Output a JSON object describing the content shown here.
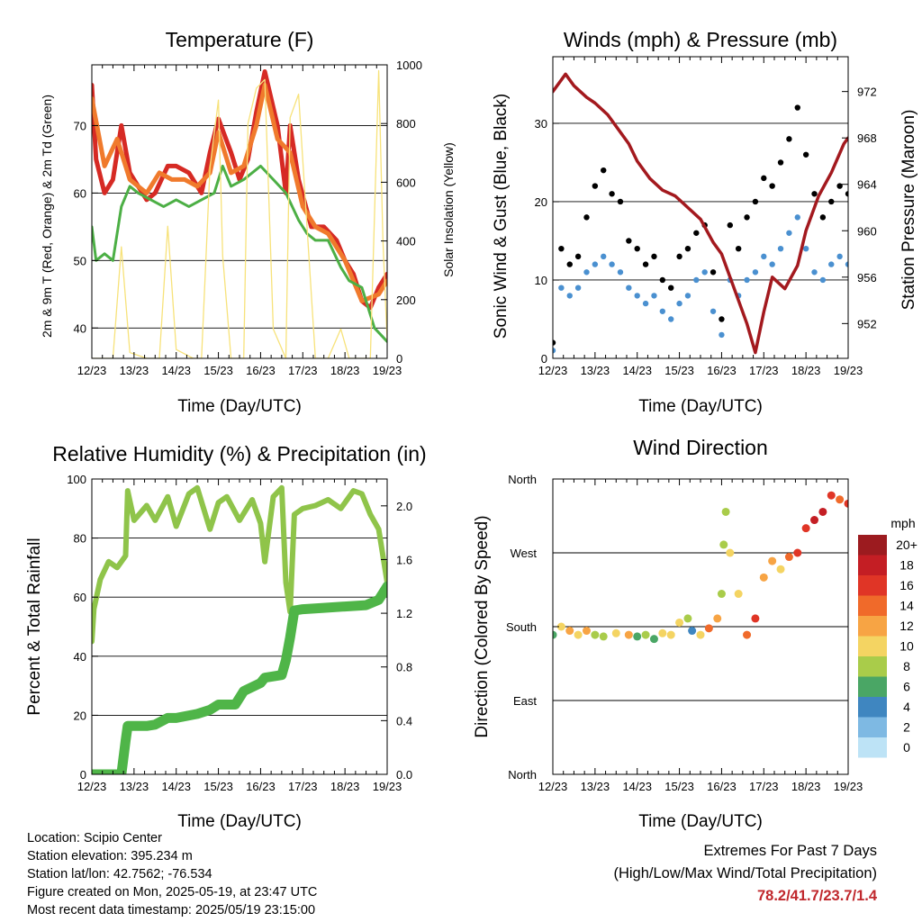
{
  "xticks": [
    "12/23",
    "13/23",
    "14/23",
    "15/23",
    "16/23",
    "17/23",
    "18/23",
    "19/23"
  ],
  "info": {
    "location": "Location: Scipio Center",
    "elevation": "Station elevation: 395.234 m",
    "latlon": "Station lat/lon: 42.7562; -76.534",
    "created": "Figure created on Mon, 2025-05-19, at 23:47 UTC",
    "recent": "Most recent data timestamp: 2025/05/19 23:15:00"
  },
  "extremes": {
    "title": "Extremes For Past 7 Days",
    "subtitle": "(High/Low/Max Wind/Total Precipitation)",
    "values": "78.2/41.7/23.7/1.4"
  },
  "legend": {
    "title": "mph",
    "labels": [
      "20+",
      "18",
      "16",
      "14",
      "12",
      "10",
      "8",
      "6",
      "4",
      "2",
      "0"
    ],
    "colors": [
      "#9c1b1f",
      "#c41e24",
      "#e03526",
      "#f06a2a",
      "#f7a444",
      "#f4d462",
      "#a9cc4a",
      "#4aa665",
      "#3f86c0",
      "#7eb9e3",
      "#bde3f6"
    ]
  },
  "chart_data": [
    {
      "type": "line",
      "title": "Temperature (F)",
      "xlabel": "Time (Day/UTC)",
      "ylabel": "2m & 9m T (Red, Orange) & 2m Td (Green)",
      "y2label": "Solar Insolation (Yellow)",
      "xlim": [
        12,
        19
      ],
      "ylim": [
        35.5,
        79
      ],
      "y2lim": [
        0,
        1000
      ],
      "yticks": [
        40,
        50,
        60,
        70
      ],
      "y2ticks": [
        0,
        200,
        400,
        600,
        800,
        1000
      ],
      "grid": true,
      "series": [
        {
          "color": "#d62a24",
          "x": [
            12.0,
            12.1,
            12.3,
            12.5,
            12.7,
            12.9,
            13.1,
            13.3,
            13.5,
            13.8,
            14.0,
            14.3,
            14.6,
            14.8,
            15.0,
            15.3,
            15.5,
            15.7,
            15.9,
            16.1,
            16.4,
            16.6,
            16.7,
            16.9,
            17.2,
            17.5,
            17.8,
            18.0,
            18.2,
            18.4,
            18.6,
            18.8,
            19.0
          ],
          "y": [
            76,
            65,
            60,
            62,
            70,
            63,
            61,
            59,
            60,
            64,
            64,
            63,
            60,
            66,
            71,
            66,
            62,
            65,
            72,
            78,
            70,
            60,
            70,
            62,
            55,
            55,
            53,
            50,
            48,
            44,
            43,
            46,
            48
          ]
        },
        {
          "color": "#f07a2c",
          "x": [
            12.0,
            12.3,
            12.6,
            12.9,
            13.1,
            13.3,
            13.6,
            13.9,
            14.2,
            14.5,
            14.8,
            15.0,
            15.3,
            15.6,
            15.9,
            16.1,
            16.4,
            16.7,
            17.0,
            17.3,
            17.6,
            18.0,
            18.4,
            18.8,
            19.0
          ],
          "y": [
            74,
            64,
            68,
            62,
            61,
            60,
            63,
            62,
            62,
            61,
            63,
            69,
            63,
            64,
            70,
            76,
            68,
            66,
            58,
            55,
            54,
            50,
            44,
            45,
            47
          ]
        },
        {
          "color": "#4caf45",
          "x": [
            12.0,
            12.1,
            12.3,
            12.5,
            12.7,
            12.9,
            13.1,
            13.4,
            13.7,
            14.0,
            14.3,
            14.6,
            14.9,
            15.1,
            15.3,
            15.6,
            15.8,
            16.0,
            16.3,
            16.6,
            16.9,
            17.1,
            17.3,
            17.6,
            17.9,
            18.1,
            18.4,
            18.7,
            19.0
          ],
          "y": [
            55,
            50,
            51,
            50,
            58,
            61,
            60,
            59,
            58,
            59,
            58,
            59,
            60,
            64,
            61,
            62,
            63,
            64,
            62,
            60,
            56,
            54,
            53,
            53,
            49,
            47,
            46,
            40,
            38
          ]
        },
        {
          "color": "#f7e27a",
          "axis": "y2",
          "x": [
            12.0,
            12.5,
            12.7,
            12.9,
            13.3,
            13.6,
            13.8,
            14.0,
            14.4,
            14.6,
            14.8,
            15.0,
            15.1,
            15.3,
            15.6,
            15.7,
            15.9,
            16.1,
            16.3,
            16.6,
            16.7,
            16.9,
            17.3,
            17.6,
            17.9,
            18.1,
            18.6,
            18.8,
            18.9,
            19.0
          ],
          "y": [
            0,
            0,
            380,
            20,
            0,
            0,
            450,
            30,
            0,
            0,
            650,
            880,
            350,
            0,
            0,
            800,
            920,
            950,
            100,
            0,
            820,
            900,
            0,
            0,
            100,
            0,
            0,
            980,
            400,
            60
          ]
        }
      ]
    },
    {
      "type": "scatter",
      "title": "Winds (mph) & Pressure (mb)",
      "xlabel": "Time (Day/UTC)",
      "ylabel": "Sonic Wind & Gust (Blue, Black)",
      "y2label": "Station Pressure (Maroon)",
      "xlim": [
        12,
        19
      ],
      "ylim": [
        0,
        38.5
      ],
      "y2lim": [
        949,
        975
      ],
      "yticks": [
        0,
        10,
        20,
        30
      ],
      "y2ticks": [
        952,
        956,
        960,
        964,
        968,
        972
      ],
      "grid": true,
      "series": [
        {
          "color": "#000000",
          "x": [
            12.0,
            12.2,
            12.4,
            12.6,
            12.8,
            13.0,
            13.2,
            13.4,
            13.6,
            13.8,
            14.0,
            14.2,
            14.4,
            14.6,
            14.8,
            15.0,
            15.2,
            15.4,
            15.6,
            15.8,
            16.0,
            16.2,
            16.4,
            16.6,
            16.8,
            17.0,
            17.2,
            17.4,
            17.6,
            17.8,
            18.0,
            18.2,
            18.4,
            18.6,
            18.8,
            19.0
          ],
          "y": [
            2,
            14,
            12,
            13,
            18,
            22,
            24,
            21,
            20,
            15,
            14,
            12,
            13,
            10,
            9,
            13,
            14,
            16,
            17,
            11,
            5,
            17,
            14,
            18,
            20,
            23,
            22,
            25,
            28,
            32,
            26,
            21,
            18,
            20,
            22,
            21
          ]
        },
        {
          "color": "#4a90d0",
          "x": [
            12.0,
            12.2,
            12.4,
            12.6,
            12.8,
            13.0,
            13.2,
            13.4,
            13.6,
            13.8,
            14.0,
            14.2,
            14.4,
            14.6,
            14.8,
            15.0,
            15.2,
            15.4,
            15.6,
            15.8,
            16.0,
            16.2,
            16.4,
            16.6,
            16.8,
            17.0,
            17.2,
            17.4,
            17.6,
            17.8,
            18.0,
            18.2,
            18.4,
            18.6,
            18.8,
            19.0
          ],
          "y": [
            1,
            9,
            8,
            9,
            11,
            12,
            13,
            12,
            11,
            9,
            8,
            7,
            8,
            6,
            5,
            7,
            8,
            10,
            11,
            6,
            3,
            10,
            8,
            10,
            11,
            13,
            12,
            14,
            16,
            18,
            14,
            11,
            10,
            12,
            13,
            12
          ]
        },
        {
          "color": "#a3191e",
          "axis": "y2",
          "type": "line",
          "x": [
            12.0,
            12.3,
            12.5,
            12.8,
            13.0,
            13.3,
            13.5,
            13.8,
            14.0,
            14.3,
            14.6,
            14.9,
            15.2,
            15.5,
            15.8,
            16.0,
            16.3,
            16.6,
            16.8,
            17.0,
            17.2,
            17.5,
            17.8,
            18.0,
            18.3,
            18.6,
            18.9,
            19.0
          ],
          "y": [
            972,
            973.5,
            972.5,
            971.5,
            971,
            970,
            969,
            967.5,
            966,
            964.5,
            963.5,
            963,
            962,
            961,
            959,
            958,
            955,
            952,
            949.5,
            953,
            956,
            955,
            957,
            960,
            963,
            965,
            967.5,
            968
          ]
        }
      ]
    },
    {
      "type": "line",
      "title": "Relative Humidity (%) & Precipitation (in)",
      "xlabel": "Time (Day/UTC)",
      "ylabel": "Percent & Total Rainfall",
      "xlim": [
        12,
        19
      ],
      "ylim": [
        0,
        100
      ],
      "y2lim": [
        0,
        2.2
      ],
      "yticks": [
        0,
        20,
        40,
        60,
        80,
        100
      ],
      "y2ticks": [
        0.0,
        0.4,
        0.8,
        1.2,
        1.6,
        2.0
      ],
      "grid": true,
      "series": [
        {
          "color": "#8fc44a",
          "x": [
            12.0,
            12.05,
            12.2,
            12.4,
            12.6,
            12.8,
            12.85,
            13.0,
            13.3,
            13.5,
            13.8,
            14.0,
            14.3,
            14.5,
            14.8,
            15.0,
            15.2,
            15.5,
            15.8,
            16.0,
            16.1,
            16.3,
            16.5,
            16.6,
            16.7,
            16.8,
            17.0,
            17.3,
            17.6,
            17.9,
            18.2,
            18.4,
            18.6,
            18.8,
            19.0
          ],
          "y": [
            45,
            56,
            66,
            72,
            70,
            74,
            96,
            86,
            91,
            86,
            94,
            84,
            95,
            97,
            83,
            92,
            94,
            86,
            93,
            85,
            72,
            94,
            97,
            65,
            55,
            88,
            90,
            91,
            93,
            90,
            96,
            95,
            88,
            83,
            65
          ]
        },
        {
          "color": "#4fb548",
          "axis": "y2",
          "x": [
            12.0,
            12.4,
            12.7,
            12.8,
            12.85,
            13.3,
            13.5,
            13.8,
            14.0,
            14.5,
            14.8,
            15.0,
            15.4,
            15.6,
            16.0,
            16.1,
            16.5,
            16.6,
            16.7,
            16.8,
            17.0,
            17.5,
            18.0,
            18.5,
            18.8,
            19.0
          ],
          "y": [
            0.0,
            0.0,
            0.0,
            0.25,
            0.36,
            0.36,
            0.37,
            0.42,
            0.42,
            0.45,
            0.48,
            0.52,
            0.52,
            0.62,
            0.68,
            0.72,
            0.74,
            0.85,
            1.02,
            1.22,
            1.23,
            1.24,
            1.25,
            1.26,
            1.3,
            1.4
          ]
        }
      ]
    },
    {
      "type": "scatter",
      "title": "Wind Direction",
      "xlabel": "Time (Day/UTC)",
      "ylabel": "Direction (Colored By Speed)",
      "xlim": [
        12,
        19
      ],
      "ylim": [
        0,
        360
      ],
      "ytick_labels": [
        "North",
        "East",
        "South",
        "West",
        "North"
      ],
      "grid": true,
      "series": [
        {
          "color_by": "speed",
          "x": [
            12.0,
            12.2,
            12.4,
            12.6,
            12.8,
            13.0,
            13.2,
            13.5,
            13.8,
            14.0,
            14.2,
            14.4,
            14.6,
            14.8,
            15.0,
            15.2,
            15.3,
            15.5,
            15.7,
            15.9,
            16.0,
            16.05,
            16.1,
            16.2,
            16.4,
            16.6,
            16.8,
            17.0,
            17.2,
            17.4,
            17.6,
            17.8,
            18.0,
            18.2,
            18.4,
            18.6,
            18.8,
            19.0
          ],
          "y": [
            170,
            180,
            175,
            170,
            175,
            170,
            168,
            172,
            170,
            168,
            170,
            165,
            172,
            170,
            185,
            190,
            175,
            170,
            178,
            190,
            220,
            280,
            320,
            270,
            220,
            170,
            190,
            240,
            260,
            250,
            265,
            270,
            300,
            310,
            320,
            340,
            335,
            330
          ],
          "speed": [
            6,
            9,
            12,
            10,
            11,
            8,
            7,
            9,
            11,
            6,
            8,
            5,
            9,
            10,
            9,
            8,
            3,
            10,
            13,
            12,
            8,
            7,
            8,
            9,
            10,
            14,
            15,
            12,
            11,
            10,
            14,
            16,
            15,
            17,
            18,
            16,
            14,
            15
          ]
        }
      ]
    }
  ]
}
